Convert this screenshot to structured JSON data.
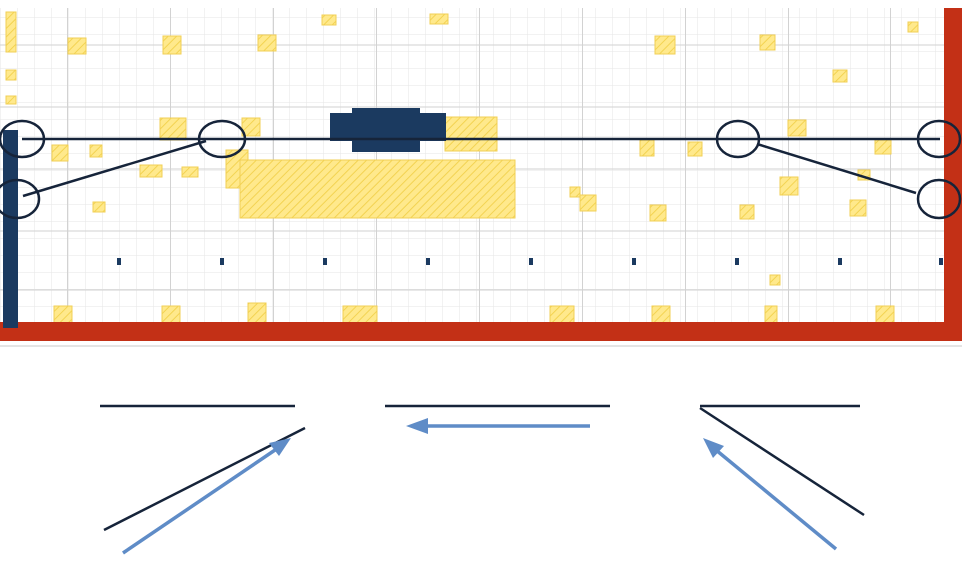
{
  "map": {
    "title": "",
    "subtitle": "",
    "node_labels": [],
    "selected_nodes": [],
    "dark_block_labels": []
  },
  "topology": {
    "nodes": []
  },
  "colors": {
    "accent_red": "#c33016",
    "accent_navy": "#1b3a60",
    "node_blue": "#29abe2",
    "tile_yellow": "#ffe37a",
    "arrow_blue": "#5f8cc7",
    "label_red": "#ee1c1c"
  }
}
